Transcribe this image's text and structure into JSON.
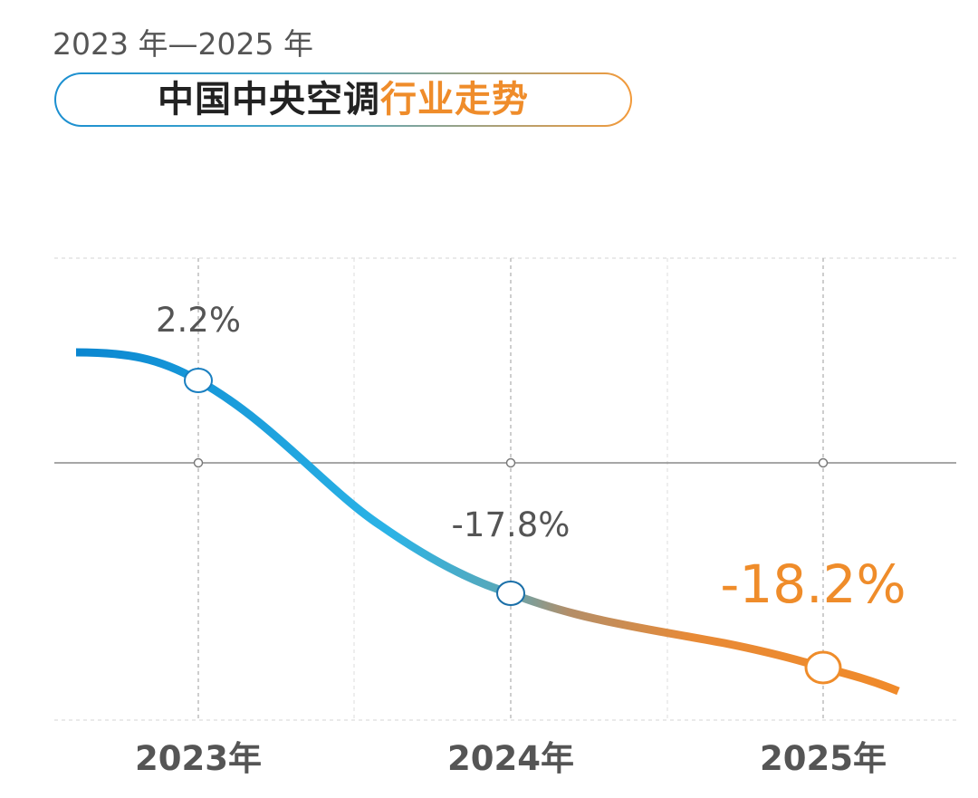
{
  "header": {
    "subtitle": "2023 年—2025 年",
    "title_part1": "中国中央空调",
    "title_part2": "行业走势"
  },
  "colors": {
    "line_start": "#0a86d0",
    "line_mid": "#2bb3e6",
    "line_end": "#f08a2a",
    "accent_orange": "#ef8c2a",
    "text_dark": "#555555"
  },
  "chart_data": {
    "type": "line",
    "categories": [
      "2023年",
      "2024年",
      "2025年"
    ],
    "values": [
      2.2,
      -17.8,
      -18.2
    ],
    "value_labels": [
      "2.2%",
      "-17.8%",
      "-18.2%"
    ],
    "unit": "%",
    "title": "中国中央空调行业走势",
    "xlabel": "",
    "ylabel": "",
    "ylim": [
      -27,
      13
    ],
    "grid": true,
    "legend": "none",
    "highlight_last": true
  }
}
